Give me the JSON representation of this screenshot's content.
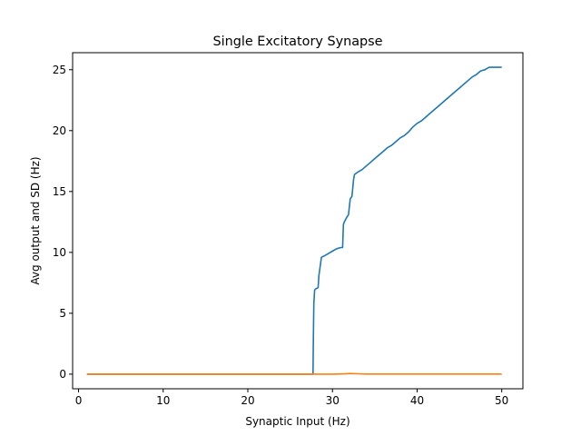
{
  "chart_data": {
    "type": "line",
    "title": "Single Excitatory Synapse",
    "xlabel": "Synaptic Input (Hz)",
    "ylabel": "Avg output and SD (Hz)",
    "xlim": [
      -0.7,
      52.5
    ],
    "ylim": [
      -1.2,
      26.4
    ],
    "xticks": [
      0,
      10,
      20,
      30,
      40,
      50
    ],
    "yticks": [
      0,
      5,
      10,
      15,
      20,
      25
    ],
    "grid": false,
    "series": [
      {
        "color": "#1f77b4",
        "x": [
          1,
          27.7,
          27.75,
          27.8,
          27.9,
          28.0,
          28.3,
          28.4,
          28.7,
          29.0,
          29.5,
          30.0,
          30.5,
          31.0,
          31.2,
          31.3,
          31.4,
          31.7,
          31.9,
          32.1,
          32.3,
          32.5,
          32.6,
          33.0,
          33.5,
          34.0,
          34.5,
          35.0,
          35.5,
          36.0,
          36.5,
          37.0,
          37.5,
          38.0,
          38.5,
          39.0,
          39.5,
          40.0,
          40.5,
          41.0,
          41.5,
          42.0,
          42.5,
          43.0,
          43.5,
          44.0,
          44.5,
          45.0,
          45.5,
          46.0,
          46.5,
          47.0,
          47.5,
          48.0,
          48.5,
          49.0,
          49.5,
          49.8,
          50.0
        ],
        "y": [
          0,
          0,
          3.0,
          5.8,
          6.9,
          7.0,
          7.1,
          8.1,
          9.6,
          9.7,
          9.9,
          10.1,
          10.3,
          10.4,
          10.4,
          12.3,
          12.5,
          12.9,
          13.1,
          14.4,
          14.6,
          16.0,
          16.4,
          16.6,
          16.8,
          17.1,
          17.4,
          17.7,
          18.0,
          18.3,
          18.6,
          18.8,
          19.1,
          19.4,
          19.6,
          19.9,
          20.3,
          20.6,
          20.8,
          21.1,
          21.4,
          21.7,
          22.0,
          22.3,
          22.6,
          22.9,
          23.2,
          23.5,
          23.8,
          24.1,
          24.4,
          24.6,
          24.9,
          25.0,
          25.2,
          25.2,
          25.2,
          25.2,
          25.2
        ]
      },
      {
        "color": "#ff7f0e",
        "x": [
          1,
          30.0,
          31.5,
          32.0,
          33.0,
          34.0,
          50.0
        ],
        "y": [
          0,
          0,
          0.02,
          0.05,
          0.03,
          0.01,
          0.01
        ]
      }
    ]
  }
}
